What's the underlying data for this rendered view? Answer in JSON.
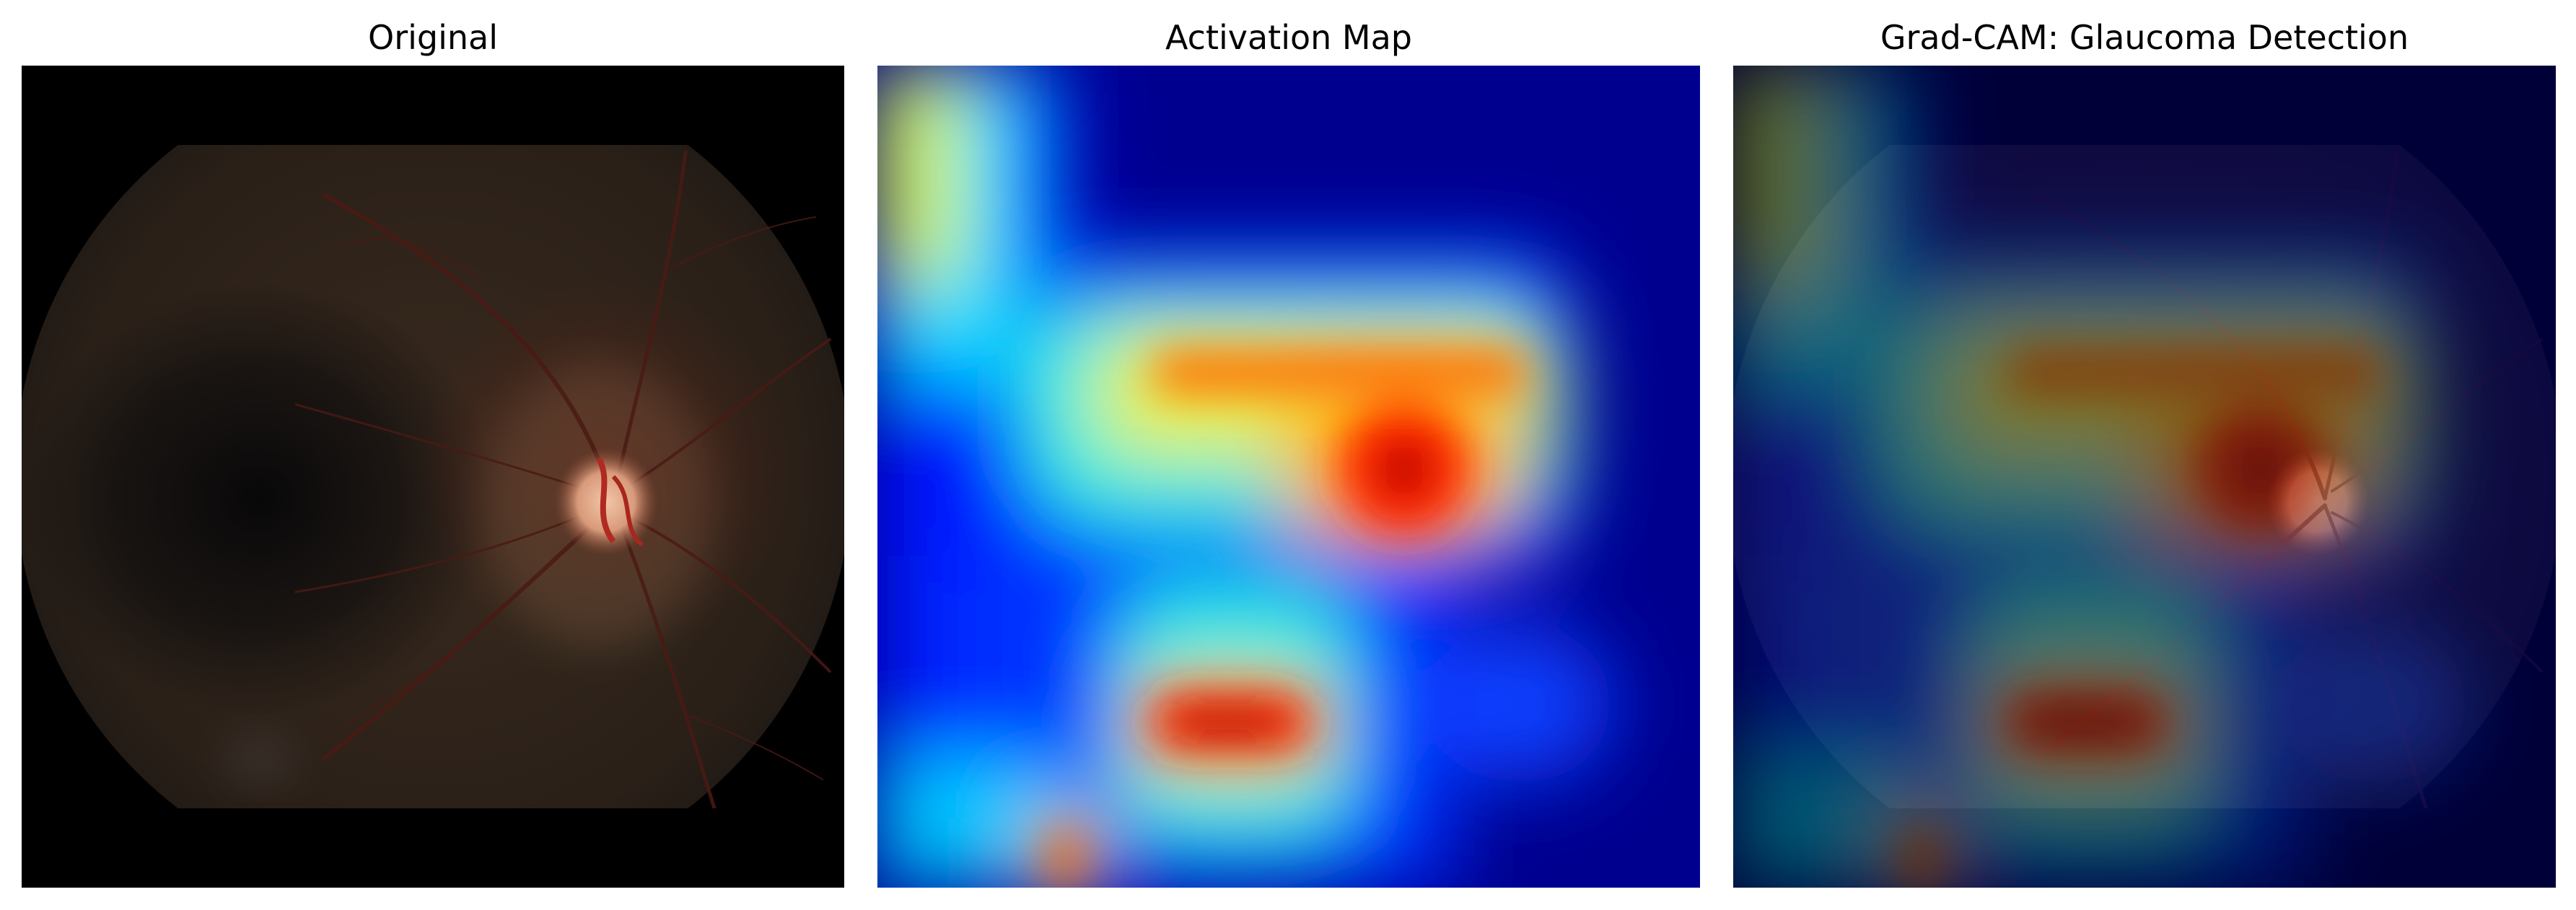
{
  "panels": [
    {
      "id": "original",
      "title": "Original"
    },
    {
      "id": "activation",
      "title": "Activation Map"
    },
    {
      "id": "gradcam",
      "title": "Grad-CAM: Glaucoma Detection"
    }
  ],
  "colors": {
    "background": "#ffffff",
    "title_text": "#000000",
    "image_background": "#000000",
    "heatmap_low": "#00007f",
    "heatmap_high": "#7f0000"
  },
  "colormap": "jet"
}
